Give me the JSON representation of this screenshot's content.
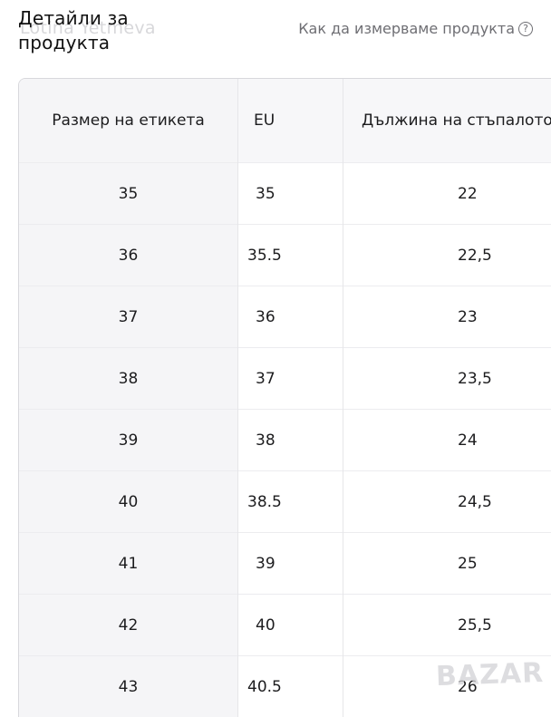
{
  "header": {
    "title": "Детайли за продукта",
    "seller_ghost": "Lotina Yetmeva",
    "measure_link": "Как да измерваме продукта"
  },
  "table": {
    "headers": [
      "Размер на етикета",
      "EU",
      "Дължина на стъпалото"
    ],
    "rows": [
      [
        "35",
        "35",
        "22"
      ],
      [
        "36",
        "35.5",
        "22,5"
      ],
      [
        "37",
        "36",
        "23"
      ],
      [
        "38",
        "37",
        "23,5"
      ],
      [
        "39",
        "38",
        "24"
      ],
      [
        "40",
        "38.5",
        "24,5"
      ],
      [
        "41",
        "39",
        "25"
      ],
      [
        "42",
        "40",
        "25,5"
      ],
      [
        "43",
        "40.5",
        "26"
      ]
    ]
  },
  "watermark": "BAZAR",
  "icons": {
    "help": "question-circle-icon"
  },
  "colors": {
    "header_bg": "#f5f5f7",
    "link": "#6e6e73",
    "text": "#1c1c1e"
  }
}
